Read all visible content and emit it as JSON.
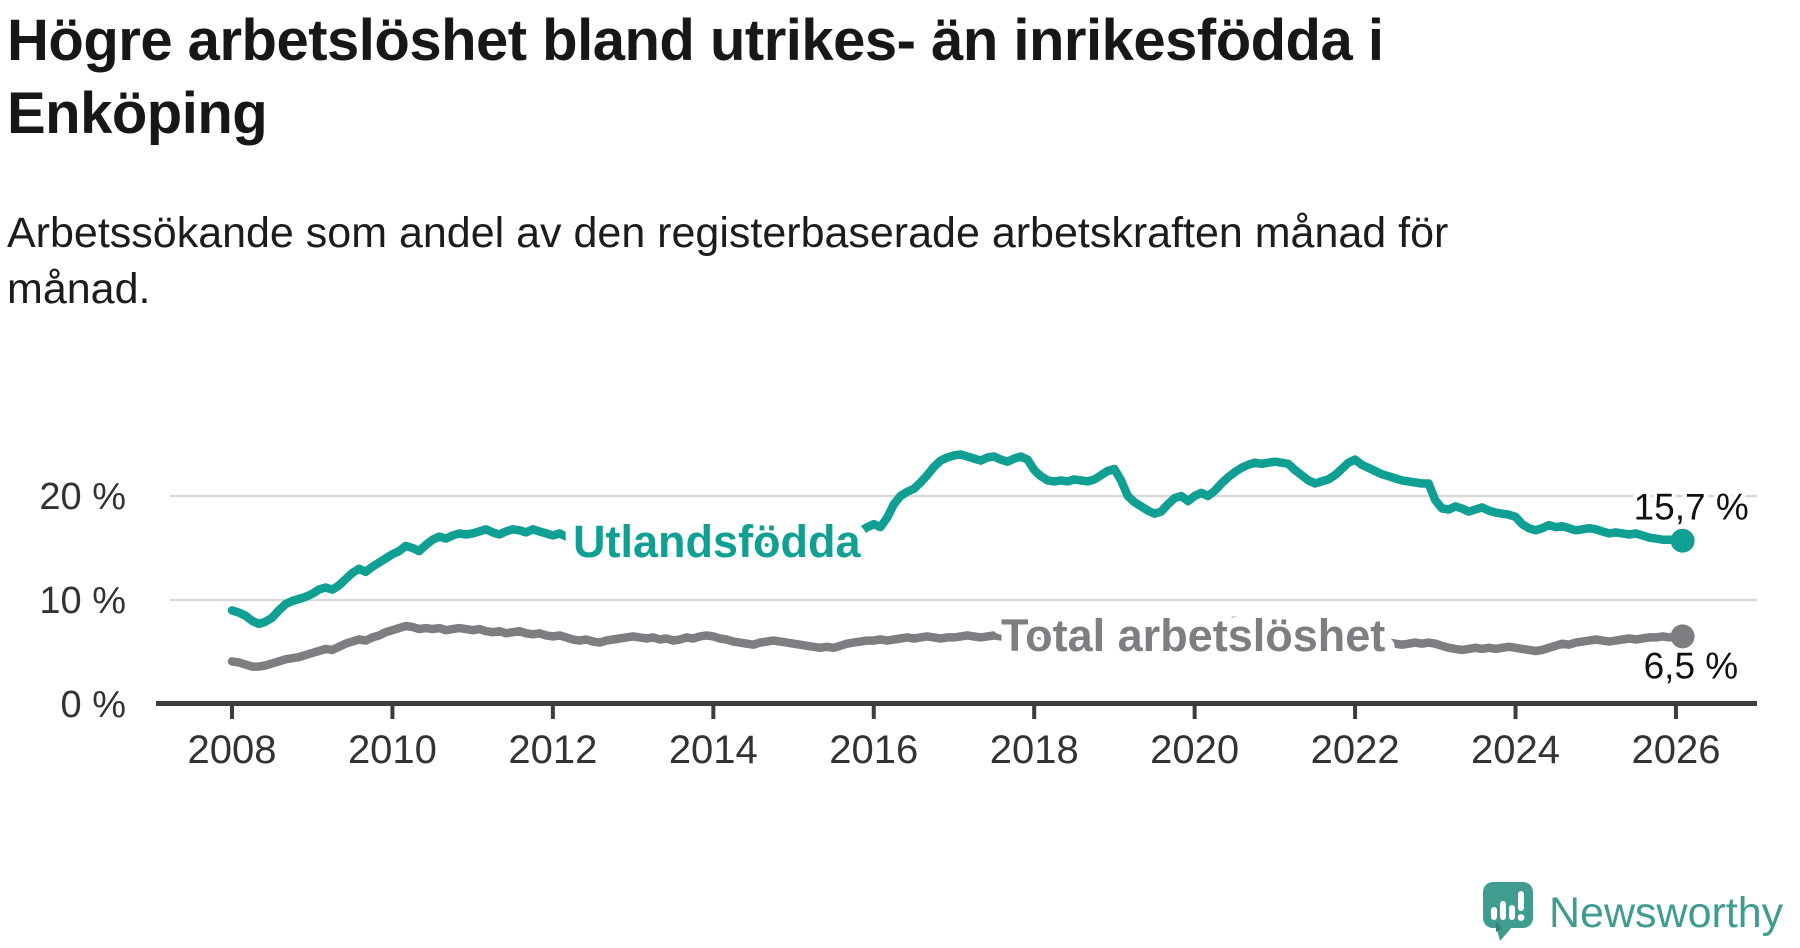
{
  "header": {
    "title_lines": [
      "Högre arbetslöshet bland utrikes- än inrikesfödda i",
      "Enköping"
    ],
    "subtitle_lines": [
      "Arbetssökande som andel av den registerbaserade arbetskraften månad för",
      "månad."
    ]
  },
  "footer": {
    "brand": "Newsworthy"
  },
  "colors": {
    "accent_teal": "#109f93",
    "line_gray": "#7d7d82",
    "axis": "#3d3d3d",
    "grid": "#d9d9d9",
    "tick_text": "#333333",
    "value_text": "#111111",
    "logo_teal": "#3f9c8f"
  },
  "chart_data": {
    "type": "line",
    "title": "Högre arbetslöshet bland utrikes- än inrikesfödda i Enköping",
    "subtitle": "Arbetssökande som andel av den registerbaserade arbetskraften månad för månad.",
    "frequency": "monthly",
    "start": "2008-01",
    "end": "2026-02",
    "legend_position": "inline-labels",
    "x_axis": {
      "range": [
        2008,
        2026.2
      ],
      "grid": false,
      "ticks": [
        {
          "value": 2008,
          "label": "2008"
        },
        {
          "value": 2010,
          "label": "2010"
        },
        {
          "value": 2012,
          "label": "2012"
        },
        {
          "value": 2014,
          "label": "2014"
        },
        {
          "value": 2016,
          "label": "2016"
        },
        {
          "value": 2018,
          "label": "2018"
        },
        {
          "value": 2020,
          "label": "2020"
        },
        {
          "value": 2022,
          "label": "2022"
        },
        {
          "value": 2024,
          "label": "2024"
        },
        {
          "value": 2026,
          "label": "2026"
        }
      ]
    },
    "y_axis": {
      "range": [
        0,
        25.5
      ],
      "grid": true,
      "unit": "%",
      "ticks": [
        {
          "value": 0,
          "label": "0 %"
        },
        {
          "value": 10,
          "label": "10 %"
        },
        {
          "value": 20,
          "label": "20 %"
        }
      ]
    },
    "series": [
      {
        "name": "Utlandsfödda",
        "color": "#109f93",
        "end_label": "15,7 %",
        "end_value": 15.7,
        "values": [
          9.0,
          8.8,
          8.5,
          8.0,
          7.7,
          7.9,
          8.3,
          9.0,
          9.6,
          9.9,
          10.1,
          10.3,
          10.6,
          11.0,
          11.2,
          11.0,
          11.4,
          12.0,
          12.6,
          13.0,
          12.7,
          13.2,
          13.6,
          14.0,
          14.4,
          14.7,
          15.2,
          15.0,
          14.7,
          15.3,
          15.8,
          16.1,
          15.9,
          16.2,
          16.4,
          16.3,
          16.4,
          16.6,
          16.8,
          16.5,
          16.3,
          16.6,
          16.8,
          16.7,
          16.5,
          16.8,
          16.6,
          16.4,
          16.2,
          16.4,
          16.1,
          15.8,
          15.6,
          15.8,
          15.5,
          15.3,
          15.5,
          15.2,
          15.0,
          15.2,
          15.4,
          15.2,
          15.0,
          14.8,
          15.0,
          15.2,
          14.9,
          14.7,
          14.9,
          15.1,
          14.8,
          15.0,
          15.2,
          15.0,
          14.8,
          14.6,
          14.8,
          15.0,
          14.7,
          14.9,
          15.1,
          15.0,
          15.2,
          15.4,
          15.3,
          15.1,
          15.0,
          15.2,
          15.4,
          15.6,
          15.5,
          15.7,
          16.0,
          16.3,
          16.6,
          17.0,
          17.3,
          17.0,
          17.9,
          19.2,
          20.0,
          20.4,
          20.7,
          21.3,
          22.0,
          22.8,
          23.4,
          23.7,
          23.9,
          24.0,
          23.8,
          23.6,
          23.4,
          23.7,
          23.8,
          23.5,
          23.3,
          23.6,
          23.8,
          23.5,
          22.5,
          21.9,
          21.5,
          21.4,
          21.5,
          21.4,
          21.6,
          21.5,
          21.4,
          21.6,
          22.0,
          22.4,
          22.6,
          21.5,
          20.0,
          19.4,
          19.0,
          18.6,
          18.3,
          18.5,
          19.2,
          19.8,
          20.0,
          19.5,
          20.0,
          20.3,
          20.0,
          20.5,
          21.2,
          21.8,
          22.3,
          22.7,
          23.0,
          23.2,
          23.1,
          23.2,
          23.3,
          23.2,
          23.1,
          22.5,
          22.0,
          21.5,
          21.2,
          21.4,
          21.6,
          22.0,
          22.6,
          23.2,
          23.5,
          23.0,
          22.7,
          22.4,
          22.1,
          21.9,
          21.7,
          21.5,
          21.4,
          21.3,
          21.2,
          21.2,
          19.6,
          18.8,
          18.7,
          19.0,
          18.8,
          18.5,
          18.7,
          18.9,
          18.6,
          18.4,
          18.3,
          18.2,
          18.0,
          17.3,
          16.9,
          16.7,
          16.9,
          17.2,
          17.0,
          17.1,
          16.9,
          16.7,
          16.8,
          16.9,
          16.8,
          16.6,
          16.4,
          16.5,
          16.4,
          16.3,
          16.4,
          16.2,
          16.0,
          15.9,
          15.8,
          15.8,
          15.8,
          15.7
        ]
      },
      {
        "name": "Total arbetslöshet",
        "color": "#7d7d82",
        "end_label": "6,5 %",
        "end_value": 6.5,
        "values": [
          4.1,
          4.0,
          3.8,
          3.6,
          3.6,
          3.7,
          3.9,
          4.1,
          4.3,
          4.4,
          4.5,
          4.7,
          4.9,
          5.1,
          5.3,
          5.2,
          5.5,
          5.8,
          6.0,
          6.2,
          6.1,
          6.4,
          6.6,
          6.9,
          7.1,
          7.3,
          7.5,
          7.4,
          7.2,
          7.3,
          7.2,
          7.3,
          7.1,
          7.2,
          7.3,
          7.2,
          7.1,
          7.2,
          7.0,
          6.9,
          7.0,
          6.8,
          6.9,
          7.0,
          6.8,
          6.7,
          6.8,
          6.6,
          6.5,
          6.6,
          6.4,
          6.2,
          6.1,
          6.2,
          6.0,
          5.9,
          6.1,
          6.2,
          6.3,
          6.4,
          6.5,
          6.4,
          6.3,
          6.4,
          6.2,
          6.3,
          6.1,
          6.2,
          6.4,
          6.3,
          6.5,
          6.6,
          6.5,
          6.3,
          6.2,
          6.0,
          5.9,
          5.8,
          5.7,
          5.9,
          6.0,
          6.1,
          6.0,
          5.9,
          5.8,
          5.7,
          5.6,
          5.5,
          5.4,
          5.5,
          5.4,
          5.6,
          5.8,
          5.9,
          6.0,
          6.1,
          6.1,
          6.2,
          6.1,
          6.2,
          6.3,
          6.4,
          6.3,
          6.4,
          6.5,
          6.4,
          6.3,
          6.4,
          6.4,
          6.5,
          6.6,
          6.5,
          6.4,
          6.5,
          6.6,
          6.5,
          6.4,
          6.6,
          6.7,
          6.6,
          6.7,
          6.6,
          6.5,
          6.4,
          6.5,
          6.4,
          6.5,
          6.4,
          6.3,
          6.4,
          6.5,
          6.6,
          6.7,
          6.6,
          6.4,
          6.3,
          6.2,
          6.1,
          6.2,
          6.3,
          6.4,
          6.5,
          6.4,
          6.5,
          6.6,
          6.7,
          7.0,
          7.4,
          7.7,
          7.9,
          8.0,
          7.9,
          7.8,
          7.6,
          7.5,
          7.4,
          7.5,
          7.4,
          7.3,
          7.1,
          6.9,
          6.7,
          6.6,
          6.5,
          6.4,
          6.3,
          6.2,
          6.3,
          6.2,
          6.1,
          6.0,
          5.9,
          5.8,
          5.9,
          5.8,
          5.7,
          5.8,
          5.9,
          5.8,
          5.9,
          5.8,
          5.6,
          5.4,
          5.3,
          5.2,
          5.3,
          5.4,
          5.3,
          5.4,
          5.3,
          5.4,
          5.5,
          5.4,
          5.3,
          5.2,
          5.1,
          5.2,
          5.4,
          5.6,
          5.8,
          5.7,
          5.9,
          6.0,
          6.1,
          6.2,
          6.1,
          6.0,
          6.1,
          6.2,
          6.3,
          6.2,
          6.3,
          6.4,
          6.4,
          6.5,
          6.4,
          6.5,
          6.5
        ]
      }
    ]
  }
}
